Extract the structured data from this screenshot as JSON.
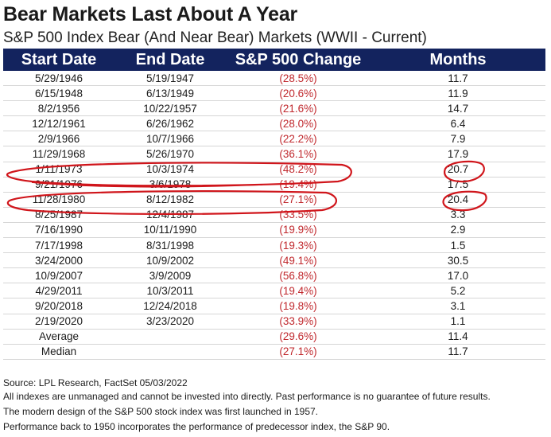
{
  "title": "Bear Markets Last About A Year",
  "subtitle": "S&P 500 Index Bear (And Near Bear) Markets (WWII - Current)",
  "chart_data": {
    "type": "table",
    "columns": [
      "Start Date",
      "End Date",
      "S&P 500 Change",
      "Months"
    ],
    "rows": [
      {
        "start": "5/29/1946",
        "end": "5/19/1947",
        "change": "(28.5%)",
        "months": "11.7"
      },
      {
        "start": "6/15/1948",
        "end": "6/13/1949",
        "change": "(20.6%)",
        "months": "11.9"
      },
      {
        "start": "8/2/1956",
        "end": "10/22/1957",
        "change": "(21.6%)",
        "months": "14.7"
      },
      {
        "start": "12/12/1961",
        "end": "6/26/1962",
        "change": "(28.0%)",
        "months": "6.4"
      },
      {
        "start": "2/9/1966",
        "end": "10/7/1966",
        "change": "(22.2%)",
        "months": "7.9"
      },
      {
        "start": "11/29/1968",
        "end": "5/26/1970",
        "change": "(36.1%)",
        "months": "17.9"
      },
      {
        "start": "1/11/1973",
        "end": "10/3/1974",
        "change": "(48.2%)",
        "months": "20.7"
      },
      {
        "start": "9/21/1976",
        "end": "3/6/1978",
        "change": "(19.4%)",
        "months": "17.5"
      },
      {
        "start": "11/28/1980",
        "end": "8/12/1982",
        "change": "(27.1%)",
        "months": "20.4"
      },
      {
        "start": "8/25/1987",
        "end": "12/4/1987",
        "change": "(33.5%)",
        "months": "3.3"
      },
      {
        "start": "7/16/1990",
        "end": "10/11/1990",
        "change": "(19.9%)",
        "months": "2.9"
      },
      {
        "start": "7/17/1998",
        "end": "8/31/1998",
        "change": "(19.3%)",
        "months": "1.5"
      },
      {
        "start": "3/24/2000",
        "end": "10/9/2002",
        "change": "(49.1%)",
        "months": "30.5"
      },
      {
        "start": "10/9/2007",
        "end": "3/9/2009",
        "change": "(56.8%)",
        "months": "17.0"
      },
      {
        "start": "4/29/2011",
        "end": "10/3/2011",
        "change": "(19.4%)",
        "months": "5.2"
      },
      {
        "start": "9/20/2018",
        "end": "12/24/2018",
        "change": "(19.8%)",
        "months": "3.1"
      },
      {
        "start": "2/19/2020",
        "end": "3/23/2020",
        "change": "(33.9%)",
        "months": "1.1"
      }
    ],
    "summary": [
      {
        "label": "Average",
        "change": "(29.6%)",
        "months": "11.4"
      },
      {
        "label": "Median",
        "change": "(27.1%)",
        "months": "11.7"
      }
    ],
    "highlighted_rows": [
      "1/11/1973",
      "11/28/1980"
    ]
  },
  "footnotes": [
    "Source: LPL Research, FactSet 05/03/2022",
    "All indexes are unmanaged and cannot be invested into directly. Past performance is no guarantee of future results.",
    "The modern design of the S&P 500 stock index was first launched in 1957.",
    "Performance back to 1950 incorporates the performance of predecessor index, the S&P 90."
  ],
  "colors": {
    "header_bg": "#13235e",
    "negative_text": "#c0282d",
    "annotation": "#d0151b"
  }
}
